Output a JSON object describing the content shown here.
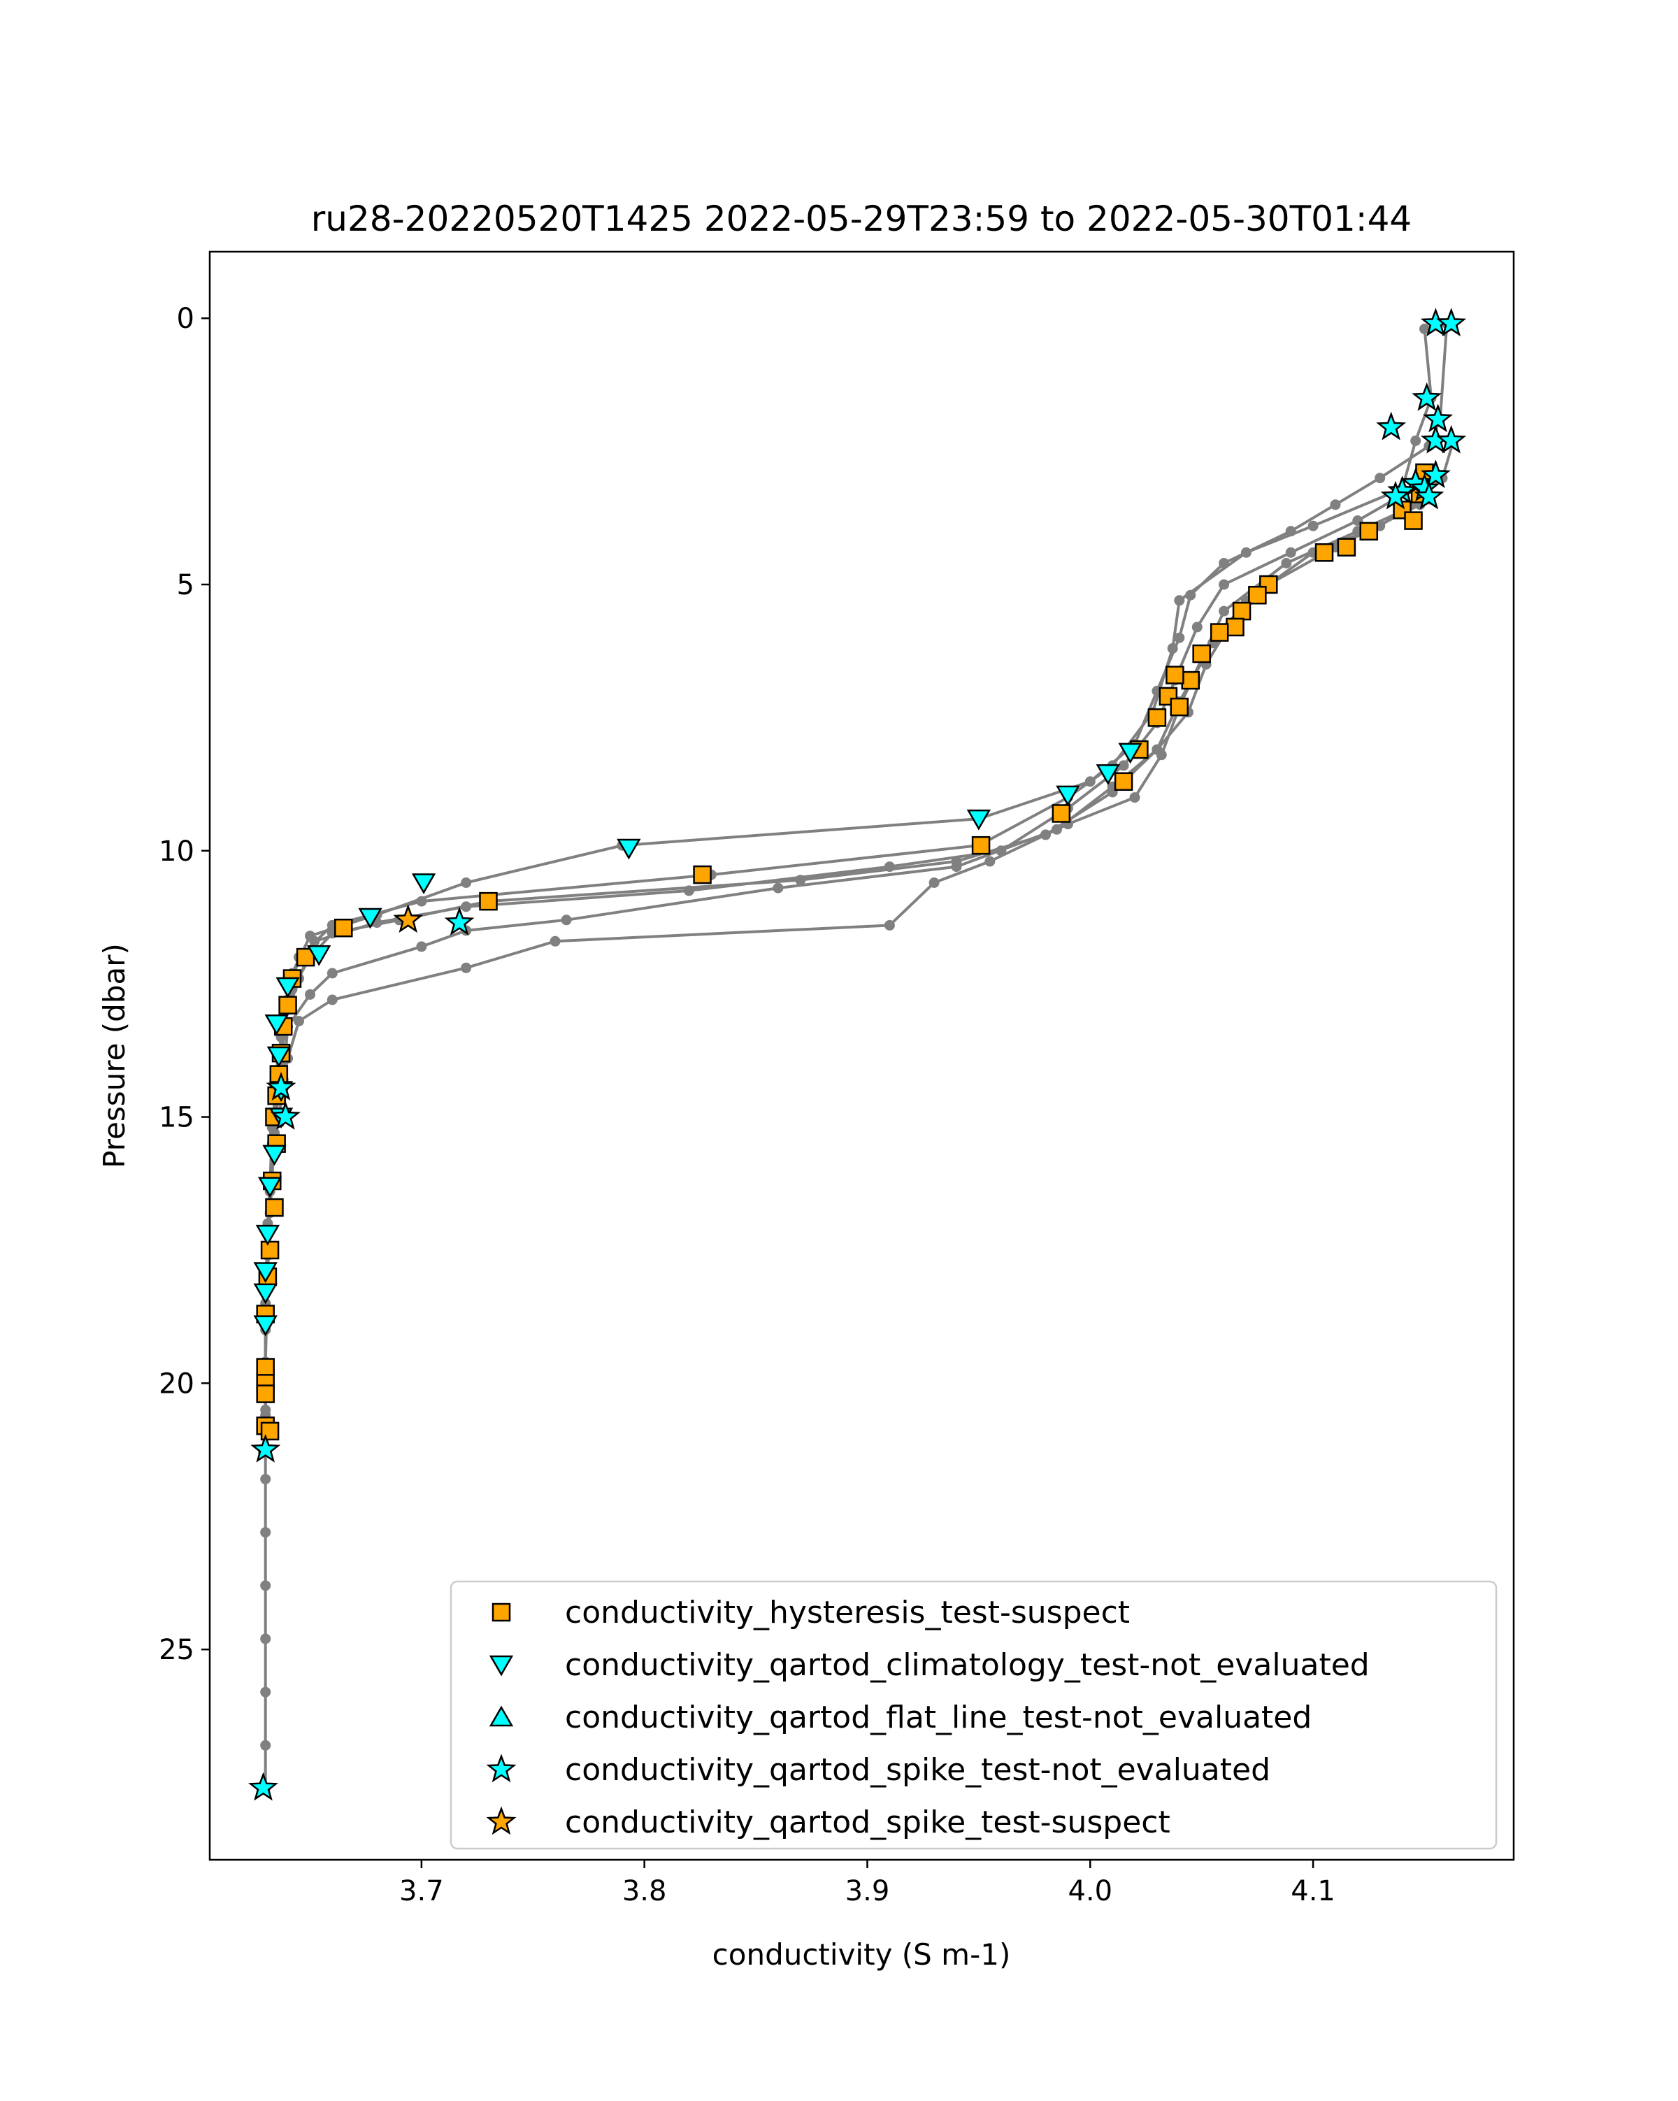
{
  "chart_data": {
    "type": "scatter",
    "title": "ru28-20220520T1425 2022-05-29T23:59 to 2022-05-30T01:44",
    "xlabel": "conductivity (S m-1)",
    "ylabel": "Pressure (dbar)",
    "xlim": [
      3.605,
      4.19
    ],
    "ylim": [
      28.95,
      -1.25
    ],
    "y_inverted": true,
    "grid": false,
    "legend_position": "lower right",
    "x_ticks": [
      {
        "value": 3.7,
        "label": "3.7"
      },
      {
        "value": 3.8,
        "label": "3.8"
      },
      {
        "value": 3.9,
        "label": "3.9"
      },
      {
        "value": 4.0,
        "label": "4.0"
      },
      {
        "value": 4.1,
        "label": "4.1"
      }
    ],
    "y_ticks": [
      {
        "value": 0,
        "label": "0"
      },
      {
        "value": 5,
        "label": "5"
      },
      {
        "value": 10,
        "label": "10"
      },
      {
        "value": 15,
        "label": "15"
      },
      {
        "value": 20,
        "label": "20"
      },
      {
        "value": 25,
        "label": "25"
      }
    ],
    "colors": {
      "profile": "#808080",
      "suspect": "#ffa500",
      "not_evaluated": "#00ffff",
      "edge": "#000000"
    },
    "profiles": [
      {
        "points": [
          [
            4.16,
            0.1
          ],
          [
            4.157,
            1.9
          ],
          [
            4.152,
            2.4
          ],
          [
            4.13,
            3.0
          ],
          [
            4.11,
            3.5
          ],
          [
            4.09,
            4.0
          ],
          [
            4.06,
            4.6
          ],
          [
            4.045,
            5.2
          ],
          [
            4.04,
            6.0
          ],
          [
            4.03,
            7.0
          ],
          [
            4.02,
            8.0
          ],
          [
            4.0,
            8.7
          ],
          [
            3.95,
            9.4
          ],
          [
            3.79,
            9.9
          ],
          [
            3.72,
            10.6
          ],
          [
            3.68,
            11.2
          ],
          [
            3.65,
            11.6
          ],
          [
            3.642,
            12.3
          ],
          [
            3.638,
            13.2
          ],
          [
            3.635,
            14.5
          ],
          [
            3.633,
            15.5
          ],
          [
            3.631,
            17.0
          ],
          [
            3.63,
            18.5
          ],
          [
            3.63,
            19.6
          ]
        ]
      },
      {
        "points": [
          [
            4.15,
            0.2
          ],
          [
            4.153,
            1.5
          ],
          [
            4.146,
            2.3
          ],
          [
            4.14,
            3.2
          ],
          [
            4.1,
            3.9
          ],
          [
            4.07,
            4.4
          ],
          [
            4.04,
            5.3
          ],
          [
            4.037,
            6.2
          ],
          [
            4.028,
            7.4
          ],
          [
            4.01,
            8.4
          ],
          [
            3.99,
            9.0
          ],
          [
            3.95,
            9.9
          ],
          [
            3.83,
            10.45
          ],
          [
            3.7,
            10.95
          ],
          [
            3.66,
            11.4
          ],
          [
            3.645,
            12.0
          ],
          [
            3.64,
            12.8
          ],
          [
            3.637,
            14.0
          ],
          [
            3.634,
            15.4
          ],
          [
            3.632,
            16.8
          ],
          [
            3.63,
            18.2
          ],
          [
            3.63,
            19.8
          ],
          [
            3.63,
            20.5
          ],
          [
            3.629,
            21.3
          ]
        ]
      },
      {
        "points": [
          [
            4.163,
            2.3
          ],
          [
            4.158,
            3.0
          ],
          [
            4.148,
            3.4
          ],
          [
            4.13,
            3.9
          ],
          [
            4.1,
            4.4
          ],
          [
            4.07,
            5.3
          ],
          [
            4.055,
            6.1
          ],
          [
            4.04,
            7.2
          ],
          [
            4.03,
            8.1
          ],
          [
            4.01,
            8.9
          ],
          [
            3.98,
            9.7
          ],
          [
            3.94,
            10.2
          ],
          [
            3.87,
            10.55
          ],
          [
            3.73,
            10.95
          ],
          [
            3.69,
            11.3
          ],
          [
            3.66,
            11.55
          ],
          [
            3.65,
            12.0
          ],
          [
            3.642,
            12.6
          ],
          [
            3.637,
            13.5
          ],
          [
            3.635,
            14.3
          ],
          [
            3.633,
            15.2
          ],
          [
            3.632,
            16.3
          ],
          [
            3.631,
            17.6
          ],
          [
            3.63,
            19.0
          ],
          [
            3.63,
            20.0
          ],
          [
            3.63,
            20.8
          ],
          [
            3.63,
            21.3
          ]
        ]
      },
      {
        "points": [
          [
            4.145,
            3.2
          ],
          [
            4.12,
            3.8
          ],
          [
            4.09,
            4.4
          ],
          [
            4.06,
            5.0
          ],
          [
            4.048,
            5.8
          ],
          [
            4.038,
            6.8
          ],
          [
            4.03,
            7.6
          ],
          [
            4.015,
            8.4
          ],
          [
            3.99,
            9.2
          ],
          [
            3.96,
            10.0
          ],
          [
            3.91,
            10.3
          ],
          [
            3.82,
            10.75
          ],
          [
            3.72,
            11.05
          ],
          [
            3.68,
            11.35
          ],
          [
            3.652,
            11.7
          ],
          [
            3.645,
            12.4
          ],
          [
            3.638,
            13.3
          ],
          [
            3.636,
            14.4
          ],
          [
            3.634,
            15.3
          ],
          [
            3.632,
            16.4
          ],
          [
            3.631,
            18.0
          ],
          [
            3.63,
            19.6
          ],
          [
            3.63,
            20.6
          ],
          [
            3.63,
            21.8
          ],
          [
            3.63,
            22.8
          ],
          [
            3.63,
            23.8
          ],
          [
            3.63,
            24.8
          ],
          [
            3.63,
            25.8
          ],
          [
            3.63,
            26.8
          ],
          [
            3.63,
            27.6
          ]
        ]
      },
      {
        "points": [
          [
            4.148,
            3.5
          ],
          [
            4.11,
            4.3
          ],
          [
            4.08,
            5.0
          ],
          [
            4.062,
            5.8
          ],
          [
            4.052,
            6.5
          ],
          [
            4.044,
            7.4
          ],
          [
            4.03,
            8.1
          ],
          [
            4.01,
            8.8
          ],
          [
            3.985,
            9.6
          ],
          [
            3.94,
            10.3
          ],
          [
            3.86,
            10.7
          ],
          [
            3.765,
            11.3
          ],
          [
            3.72,
            11.5
          ],
          [
            3.7,
            11.8
          ],
          [
            3.66,
            12.3
          ],
          [
            3.65,
            12.7
          ],
          [
            3.64,
            13.3
          ],
          [
            3.638,
            14.3
          ],
          [
            3.636,
            15.1
          ]
        ]
      },
      {
        "points": [
          [
            4.152,
            3.4
          ],
          [
            4.12,
            4.0
          ],
          [
            4.088,
            4.6
          ],
          [
            4.06,
            5.5
          ],
          [
            4.05,
            6.4
          ],
          [
            4.04,
            7.3
          ],
          [
            4.032,
            8.2
          ],
          [
            4.02,
            9.0
          ],
          [
            3.99,
            9.5
          ],
          [
            3.955,
            10.2
          ],
          [
            3.93,
            10.6
          ],
          [
            3.91,
            11.4
          ],
          [
            3.76,
            11.7
          ],
          [
            3.72,
            12.2
          ],
          [
            3.66,
            12.8
          ],
          [
            3.645,
            13.2
          ],
          [
            3.64,
            13.9
          ],
          [
            3.637,
            14.5
          ]
        ]
      }
    ],
    "series": [
      {
        "name": "conductivity_hysteresis_test-suspect",
        "marker": "square",
        "color": "#ffa500",
        "points": [
          [
            4.15,
            2.9
          ],
          [
            4.148,
            3.3
          ],
          [
            4.14,
            3.6
          ],
          [
            4.145,
            3.8
          ],
          [
            4.125,
            4.0
          ],
          [
            4.115,
            4.3
          ],
          [
            4.105,
            4.4
          ],
          [
            4.08,
            5.0
          ],
          [
            4.075,
            5.2
          ],
          [
            4.068,
            5.5
          ],
          [
            4.065,
            5.8
          ],
          [
            4.058,
            5.9
          ],
          [
            4.05,
            6.3
          ],
          [
            4.045,
            6.8
          ],
          [
            4.038,
            6.7
          ],
          [
            4.035,
            7.1
          ],
          [
            4.04,
            7.3
          ],
          [
            4.03,
            7.5
          ],
          [
            4.022,
            8.1
          ],
          [
            4.015,
            8.7
          ],
          [
            3.987,
            9.3
          ],
          [
            3.951,
            9.9
          ],
          [
            3.826,
            10.45
          ],
          [
            3.73,
            10.95
          ],
          [
            3.665,
            11.45
          ],
          [
            3.648,
            12.0
          ],
          [
            3.642,
            12.4
          ],
          [
            3.64,
            12.9
          ],
          [
            3.638,
            13.3
          ],
          [
            3.637,
            13.8
          ],
          [
            3.636,
            14.2
          ],
          [
            3.635,
            14.6
          ],
          [
            3.634,
            15.0
          ],
          [
            3.635,
            15.5
          ],
          [
            3.633,
            16.2
          ],
          [
            3.634,
            16.7
          ],
          [
            3.632,
            17.5
          ],
          [
            3.631,
            18.0
          ],
          [
            3.63,
            18.7
          ],
          [
            3.63,
            19.7
          ],
          [
            3.63,
            20.0
          ],
          [
            3.63,
            20.2
          ],
          [
            3.63,
            20.8
          ],
          [
            3.632,
            20.9
          ]
        ]
      },
      {
        "name": "conductivity_qartod_climatology_test-not_evaluated",
        "marker": "triangle-down",
        "color": "#00ffff",
        "points": [
          [
            4.018,
            8.15
          ],
          [
            4.008,
            8.55
          ],
          [
            3.99,
            8.95
          ],
          [
            3.95,
            9.4
          ],
          [
            3.793,
            9.95
          ],
          [
            3.701,
            10.6
          ],
          [
            3.677,
            11.25
          ],
          [
            3.654,
            11.95
          ],
          [
            3.64,
            12.55
          ],
          [
            3.635,
            13.25
          ],
          [
            3.636,
            13.85
          ],
          [
            3.637,
            14.5
          ],
          [
            3.637,
            15.0
          ],
          [
            3.634,
            15.7
          ],
          [
            3.632,
            16.3
          ],
          [
            3.631,
            17.2
          ],
          [
            3.63,
            17.9
          ],
          [
            3.63,
            18.3
          ],
          [
            3.63,
            18.9
          ]
        ]
      },
      {
        "name": "conductivity_qartod_flat_line_test-not_evaluated",
        "marker": "triangle-up",
        "color": "#00ffff",
        "points": []
      },
      {
        "name": "conductivity_qartod_spike_test-not_evaluated",
        "marker": "star",
        "color": "#00ffff",
        "points": [
          [
            4.155,
            0.1
          ],
          [
            4.162,
            0.1
          ],
          [
            4.151,
            1.5
          ],
          [
            4.135,
            2.05
          ],
          [
            4.156,
            1.9
          ],
          [
            4.155,
            2.3
          ],
          [
            4.162,
            2.3
          ],
          [
            4.155,
            2.95
          ],
          [
            4.146,
            3.1
          ],
          [
            4.14,
            3.25
          ],
          [
            4.137,
            3.35
          ],
          [
            4.15,
            3.2
          ],
          [
            4.152,
            3.35
          ],
          [
            3.717,
            11.35
          ],
          [
            3.637,
            14.45
          ],
          [
            3.639,
            15.0
          ],
          [
            3.63,
            21.25
          ],
          [
            3.629,
            27.6
          ]
        ]
      },
      {
        "name": "conductivity_qartod_spike_test-suspect",
        "marker": "star",
        "color": "#ffa500",
        "points": [
          [
            3.694,
            11.3
          ]
        ]
      }
    ]
  }
}
